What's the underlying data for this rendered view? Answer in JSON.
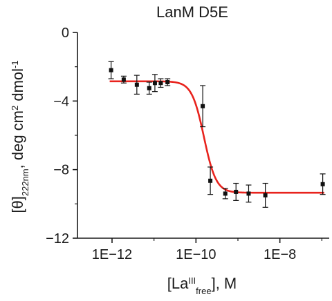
{
  "chart_data": {
    "type": "scatter",
    "title": "LanM D5E",
    "xlabel": {
      "prefix": "[La",
      "sup": "III",
      "sub": "free",
      "suffix": "], M"
    },
    "ylabel": {
      "prefix": "[θ]",
      "sub": "222nm",
      "mid": ", deg cm",
      "sup1": "2",
      "mid2": " dmol",
      "sup2": "-1"
    },
    "xscale": "log",
    "xlim": [
      1.5e-13,
      1.5e-07
    ],
    "ylim": [
      -12,
      0
    ],
    "xticks": [
      {
        "value": 1e-12,
        "label": "1E−12"
      },
      {
        "value": 1e-10,
        "label": "1E−10"
      },
      {
        "value": 1e-08,
        "label": "1E−8"
      }
    ],
    "yticks": [
      {
        "value": 0,
        "label": "0"
      },
      {
        "value": -4,
        "label": "−4"
      },
      {
        "value": -8,
        "label": "−8"
      },
      {
        "value": -12,
        "label": "−12"
      }
    ],
    "grid": false,
    "colors": {
      "points": "#111111",
      "fit": "#e8231d",
      "axes": "#1a1a1a"
    },
    "points": [
      {
        "x": 9.5e-13,
        "y": -2.2,
        "err": 0.5
      },
      {
        "x": 1.9e-12,
        "y": -2.75,
        "err": 0.2
      },
      {
        "x": 3.9e-12,
        "y": -3.05,
        "err": 0.55
      },
      {
        "x": 7.7e-12,
        "y": -3.25,
        "err": 0.35
      },
      {
        "x": 1.05e-11,
        "y": -2.95,
        "err": 0.5
      },
      {
        "x": 1.45e-11,
        "y": -2.95,
        "err": 0.25
      },
      {
        "x": 2.1e-11,
        "y": -2.9,
        "err": 0.2
      },
      {
        "x": 1.45e-10,
        "y": -4.3,
        "err": 1.2
      },
      {
        "x": 2.2e-10,
        "y": -8.65,
        "err": 0.8
      },
      {
        "x": 5e-10,
        "y": -9.4,
        "err": 0.3
      },
      {
        "x": 9e-10,
        "y": -9.3,
        "err": 0.5
      },
      {
        "x": 1.8e-09,
        "y": -9.4,
        "err": 0.5
      },
      {
        "x": 4.5e-09,
        "y": -9.5,
        "err": 0.7
      },
      {
        "x": 1.05e-07,
        "y": -8.85,
        "err": 0.6
      }
    ],
    "fit": {
      "top": -2.85,
      "bottom": -9.35,
      "x50": 1.55e-10,
      "hill": 3.0
    }
  }
}
